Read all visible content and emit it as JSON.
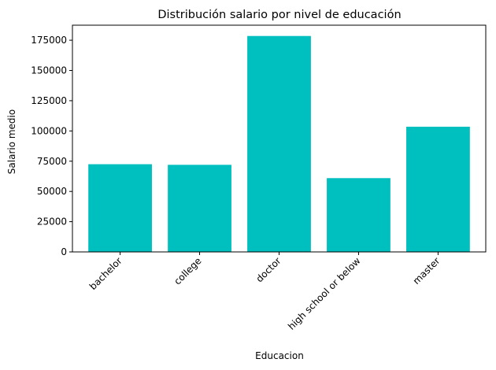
{
  "chart_data": {
    "type": "bar",
    "title": "Distribución salario por nivel de educación",
    "xlabel": "Educacion",
    "ylabel": "Salario medio",
    "categories": [
      "bachelor",
      "college",
      "doctor",
      "high school or below",
      "master"
    ],
    "values": [
      72500,
      72000,
      178500,
      61000,
      103500
    ],
    "ylim": [
      0,
      187425
    ],
    "yticks": [
      0,
      25000,
      50000,
      75000,
      100000,
      125000,
      150000,
      175000
    ],
    "bar_color": "#00bfbf",
    "grid": false,
    "legend": "none"
  }
}
